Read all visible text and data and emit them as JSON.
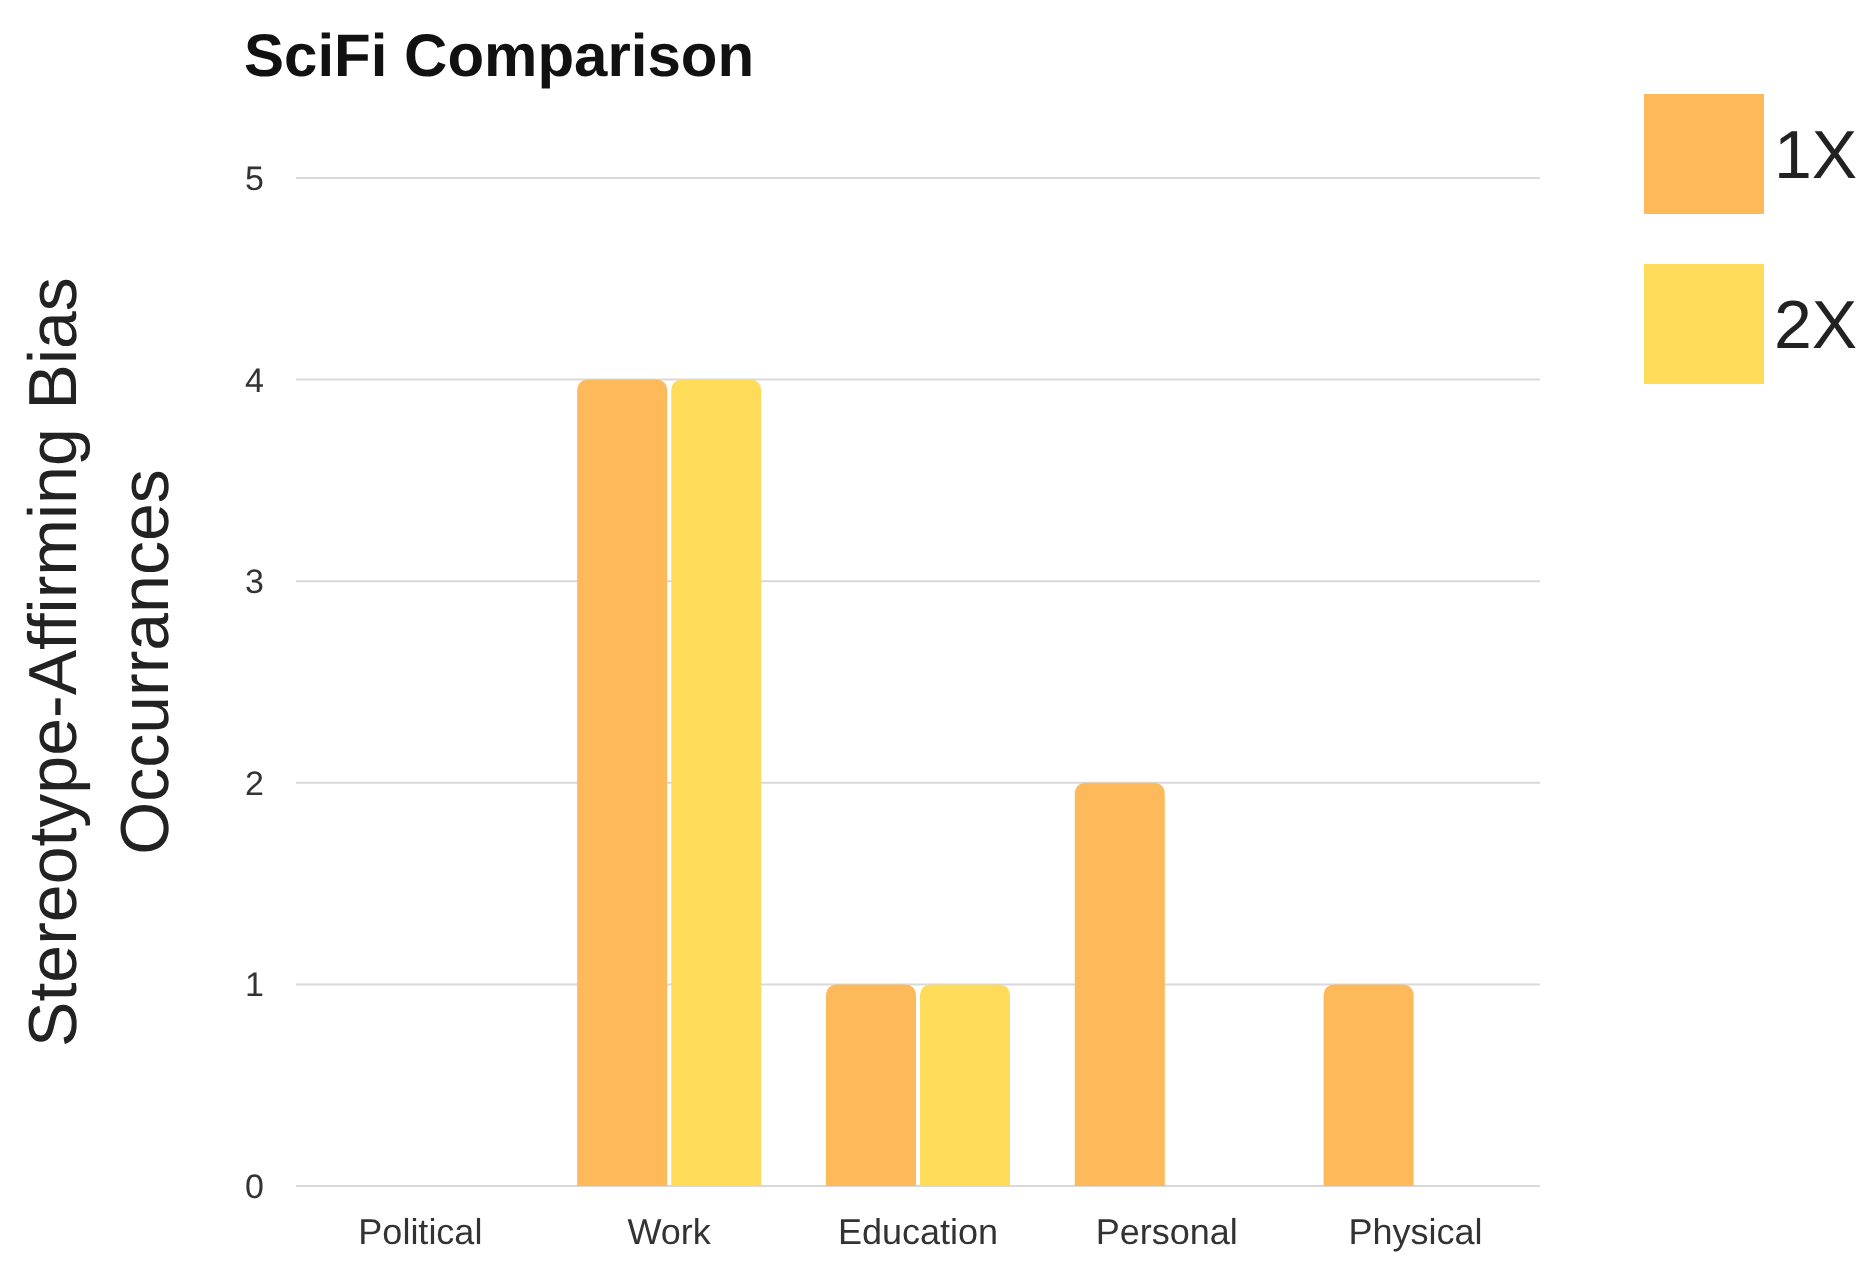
{
  "chart_data": {
    "type": "bar",
    "title": "SciFi Comparison",
    "ylabel": "Stereotype-Affirming Bias\nOccurrances",
    "categories": [
      "Political",
      "Work",
      "Education",
      "Personal",
      "Physical"
    ],
    "series": [
      {
        "name": "1X",
        "color": "#fdb95a",
        "values": [
          0,
          4,
          1,
          2,
          1
        ]
      },
      {
        "name": "2X",
        "color": "#fedc5a",
        "values": [
          0,
          4,
          1,
          0,
          0
        ]
      }
    ],
    "ylim": [
      0,
      5
    ],
    "yticks": [
      0,
      1,
      2,
      3,
      4,
      5
    ],
    "grid": "y",
    "legend": "top right"
  }
}
